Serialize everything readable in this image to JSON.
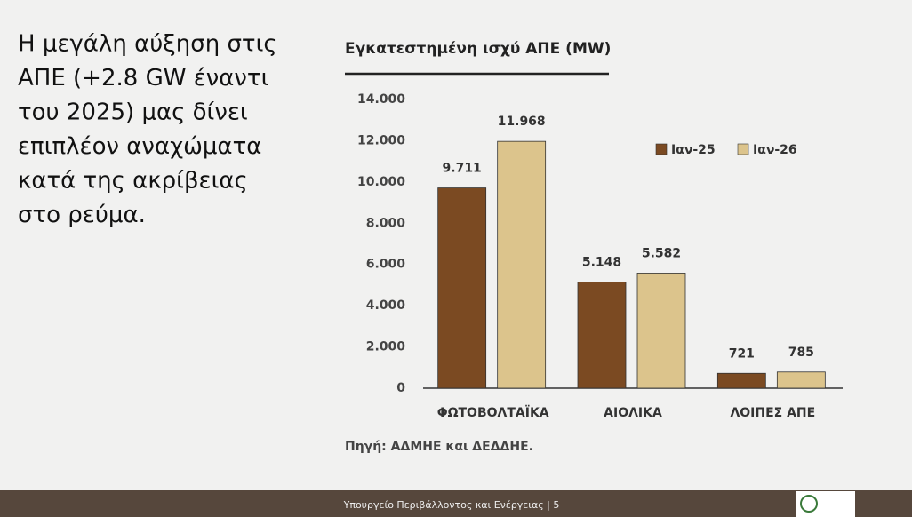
{
  "heading_lines": [
    "Η μεγάλη αύξηση στις",
    "ΑΠΕ (+2.8 GW έναντι",
    "του 2025) μας δίνει",
    "επιπλέον αναχώματα",
    "κατά της ακρίβειας",
    "στο ρεύμα."
  ],
  "footer": "Υπουργείο Περιβάλλοντος και Ενέργειας | 5",
  "chart_data": {
    "type": "bar",
    "title": "Εγκατεστημένη ισχύ ΑΠΕ (MW)",
    "categories": [
      "ΦΩΤΟΒΟΛΤΑΪΚΑ",
      "ΑΙΟΛΙΚΑ",
      "ΛΟΙΠΕΣ ΑΠΕ"
    ],
    "series": [
      {
        "name": "Ιαν-25",
        "color": "#7b4a22",
        "values": [
          9711,
          5148,
          721
        ],
        "value_labels": [
          "9.711",
          "5.148",
          "721"
        ]
      },
      {
        "name": "Ιαν-26",
        "color": "#dcc48c",
        "values": [
          11968,
          5582,
          785
        ],
        "value_labels": [
          "11.968",
          "5.582",
          "785"
        ]
      }
    ],
    "ylim": [
      0,
      14000
    ],
    "yticks": [
      0,
      {
        "value": 2000,
        "label": "2.000"
      },
      {
        "value": 4000,
        "label": "4.000"
      },
      {
        "value": 6000,
        "label": "6.000"
      },
      {
        "value": 8000,
        "label": "8.000"
      },
      {
        "value": 10000,
        "label": "10.000"
      },
      {
        "value": 12000,
        "label": "12.000"
      },
      {
        "value": 14000,
        "label": "14.000"
      }
    ],
    "grid": false,
    "legend": "top-right",
    "source": "Πηγή: ΑΔΜΗΕ και ΔΕΔΔΗΕ."
  }
}
